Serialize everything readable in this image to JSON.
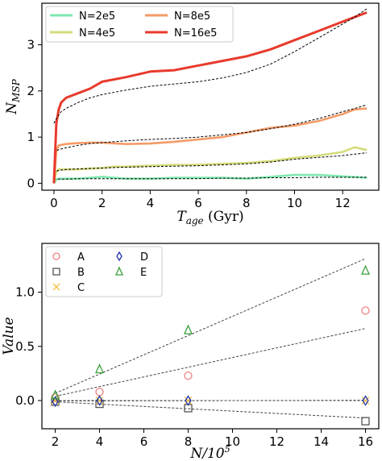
{
  "chart_data": [
    {
      "type": "line",
      "title": "",
      "xlabel_main": "T",
      "xlabel_sub": "age",
      "xlabel_unit": " (Gyr)",
      "ylabel_main": "N",
      "ylabel_sub": "MSP",
      "xlim": [
        -0.5,
        13.5
      ],
      "ylim": [
        -0.15,
        3.9
      ],
      "xticks": [
        0,
        2,
        4,
        6,
        8,
        10,
        12
      ],
      "yticks": [
        0,
        1,
        2,
        3
      ],
      "legend_placement": "top-left",
      "legend": [
        "N=2e5",
        "N=4e5",
        "N=8e5",
        "N=16e5"
      ],
      "series": [
        {
          "name": "N=2e5",
          "color": "#7fe8b0",
          "x": [
            0.0,
            0.1,
            0.2,
            0.5,
            1.0,
            1.5,
            2.0,
            2.5,
            3.0,
            4.0,
            5.0,
            6.0,
            7.0,
            8.0,
            9.0,
            10.0,
            11.0,
            12.0,
            13.0
          ],
          "y": [
            0.0,
            0.08,
            0.1,
            0.1,
            0.1,
            0.12,
            0.14,
            0.12,
            0.1,
            0.1,
            0.12,
            0.12,
            0.12,
            0.1,
            0.14,
            0.18,
            0.18,
            0.15,
            0.12
          ],
          "fit": [
            0.08,
            0.09,
            0.09,
            0.09,
            0.1,
            0.1,
            0.1,
            0.1,
            0.1,
            0.1,
            0.1,
            0.1,
            0.11,
            0.11,
            0.12,
            0.12,
            0.13,
            0.13,
            0.13
          ]
        },
        {
          "name": "N=4e5",
          "color": "#d4dc7a",
          "x": [
            0.0,
            0.1,
            0.2,
            0.5,
            1.0,
            1.5,
            2.0,
            2.5,
            3.0,
            4.0,
            5.0,
            6.0,
            7.0,
            8.0,
            9.0,
            10.0,
            11.0,
            12.0,
            12.5,
            13.0
          ],
          "y": [
            0.0,
            0.25,
            0.3,
            0.3,
            0.3,
            0.32,
            0.33,
            0.36,
            0.36,
            0.38,
            0.4,
            0.4,
            0.42,
            0.44,
            0.48,
            0.55,
            0.6,
            0.68,
            0.78,
            0.72
          ],
          "fit": [
            0.2,
            0.26,
            0.28,
            0.3,
            0.31,
            0.32,
            0.33,
            0.34,
            0.35,
            0.36,
            0.37,
            0.38,
            0.4,
            0.42,
            0.46,
            0.52,
            0.56,
            0.6,
            0.63,
            0.66
          ]
        },
        {
          "name": "N=8e5",
          "color": "#f49a66",
          "x": [
            0.0,
            0.1,
            0.2,
            0.5,
            1.0,
            1.5,
            2.0,
            3.0,
            4.0,
            5.0,
            6.0,
            7.0,
            8.0,
            9.0,
            10.0,
            11.0,
            12.0,
            12.5,
            13.0
          ],
          "y": [
            0.0,
            0.7,
            0.82,
            0.85,
            0.87,
            0.88,
            0.88,
            0.85,
            0.86,
            0.9,
            0.95,
            1.0,
            1.1,
            1.2,
            1.25,
            1.35,
            1.5,
            1.6,
            1.62
          ],
          "fit": [
            0.65,
            0.7,
            0.73,
            0.77,
            0.82,
            0.86,
            0.88,
            0.92,
            0.95,
            0.97,
            1.0,
            1.05,
            1.1,
            1.18,
            1.28,
            1.4,
            1.55,
            1.62,
            1.7
          ]
        },
        {
          "name": "N=16e5",
          "color": "#e83a2c",
          "x": [
            0.0,
            0.1,
            0.2,
            0.3,
            0.5,
            1.0,
            1.5,
            2.0,
            3.0,
            4.0,
            5.0,
            6.0,
            7.0,
            8.0,
            9.0,
            10.0,
            11.0,
            12.0,
            12.5,
            13.0
          ],
          "y": [
            0.0,
            1.3,
            1.6,
            1.75,
            1.85,
            1.95,
            2.05,
            2.2,
            2.3,
            2.42,
            2.45,
            2.55,
            2.65,
            2.75,
            2.9,
            3.1,
            3.3,
            3.5,
            3.6,
            3.7
          ],
          "fit": [
            1.3,
            1.4,
            1.48,
            1.55,
            1.62,
            1.75,
            1.85,
            1.92,
            2.02,
            2.1,
            2.15,
            2.2,
            2.28,
            2.4,
            2.58,
            2.85,
            3.15,
            3.45,
            3.6,
            3.78
          ]
        }
      ]
    },
    {
      "type": "scatter",
      "title": "",
      "xlabel_main": "N",
      "xlabel_denom": "/10",
      "xlabel_exp": "5",
      "ylabel": "Value",
      "xlim": [
        1.4,
        16.6
      ],
      "ylim": [
        -0.26,
        1.45
      ],
      "xticks": [
        2,
        4,
        6,
        8,
        10,
        12,
        14,
        16
      ],
      "yticks": [
        0.0,
        0.5,
        1.0
      ],
      "ytick_labels": [
        "0.0",
        "0.5",
        "1.0"
      ],
      "legend_placement": "top-left",
      "series": [
        {
          "name": "A",
          "marker": "circle",
          "color": "#f08080",
          "x": [
            2,
            4,
            8,
            16
          ],
          "y": [
            0.03,
            0.08,
            0.23,
            0.83
          ],
          "fit_slope": 0.0447,
          "fit_intercept": -0.05
        },
        {
          "name": "B",
          "marker": "square",
          "color": "#555555",
          "x": [
            2,
            4,
            8,
            16
          ],
          "y": [
            -0.01,
            -0.03,
            -0.07,
            -0.19
          ],
          "fit_slope": -0.0107,
          "fit_intercept": 0.01
        },
        {
          "name": "C",
          "marker": "x",
          "color": "#f2c040",
          "x": [
            2,
            4,
            8,
            16
          ],
          "y": [
            0.0,
            0.0,
            0.0,
            0.0
          ],
          "fit_slope": 0.0,
          "fit_intercept": 0.0
        },
        {
          "name": "D",
          "marker": "diamond",
          "color": "#2233aa",
          "x": [
            2,
            4,
            8,
            16
          ],
          "y": [
            -0.01,
            0.0,
            0.0,
            0.0
          ],
          "fit_slope": 0.0005,
          "fit_intercept": -0.005
        },
        {
          "name": "E",
          "marker": "triangle",
          "color": "#3aa03a",
          "x": [
            2,
            4,
            8,
            16
          ],
          "y": [
            0.05,
            0.29,
            0.65,
            1.2
          ],
          "fit_slope": 0.0887,
          "fit_intercept": -0.11
        }
      ]
    }
  ]
}
